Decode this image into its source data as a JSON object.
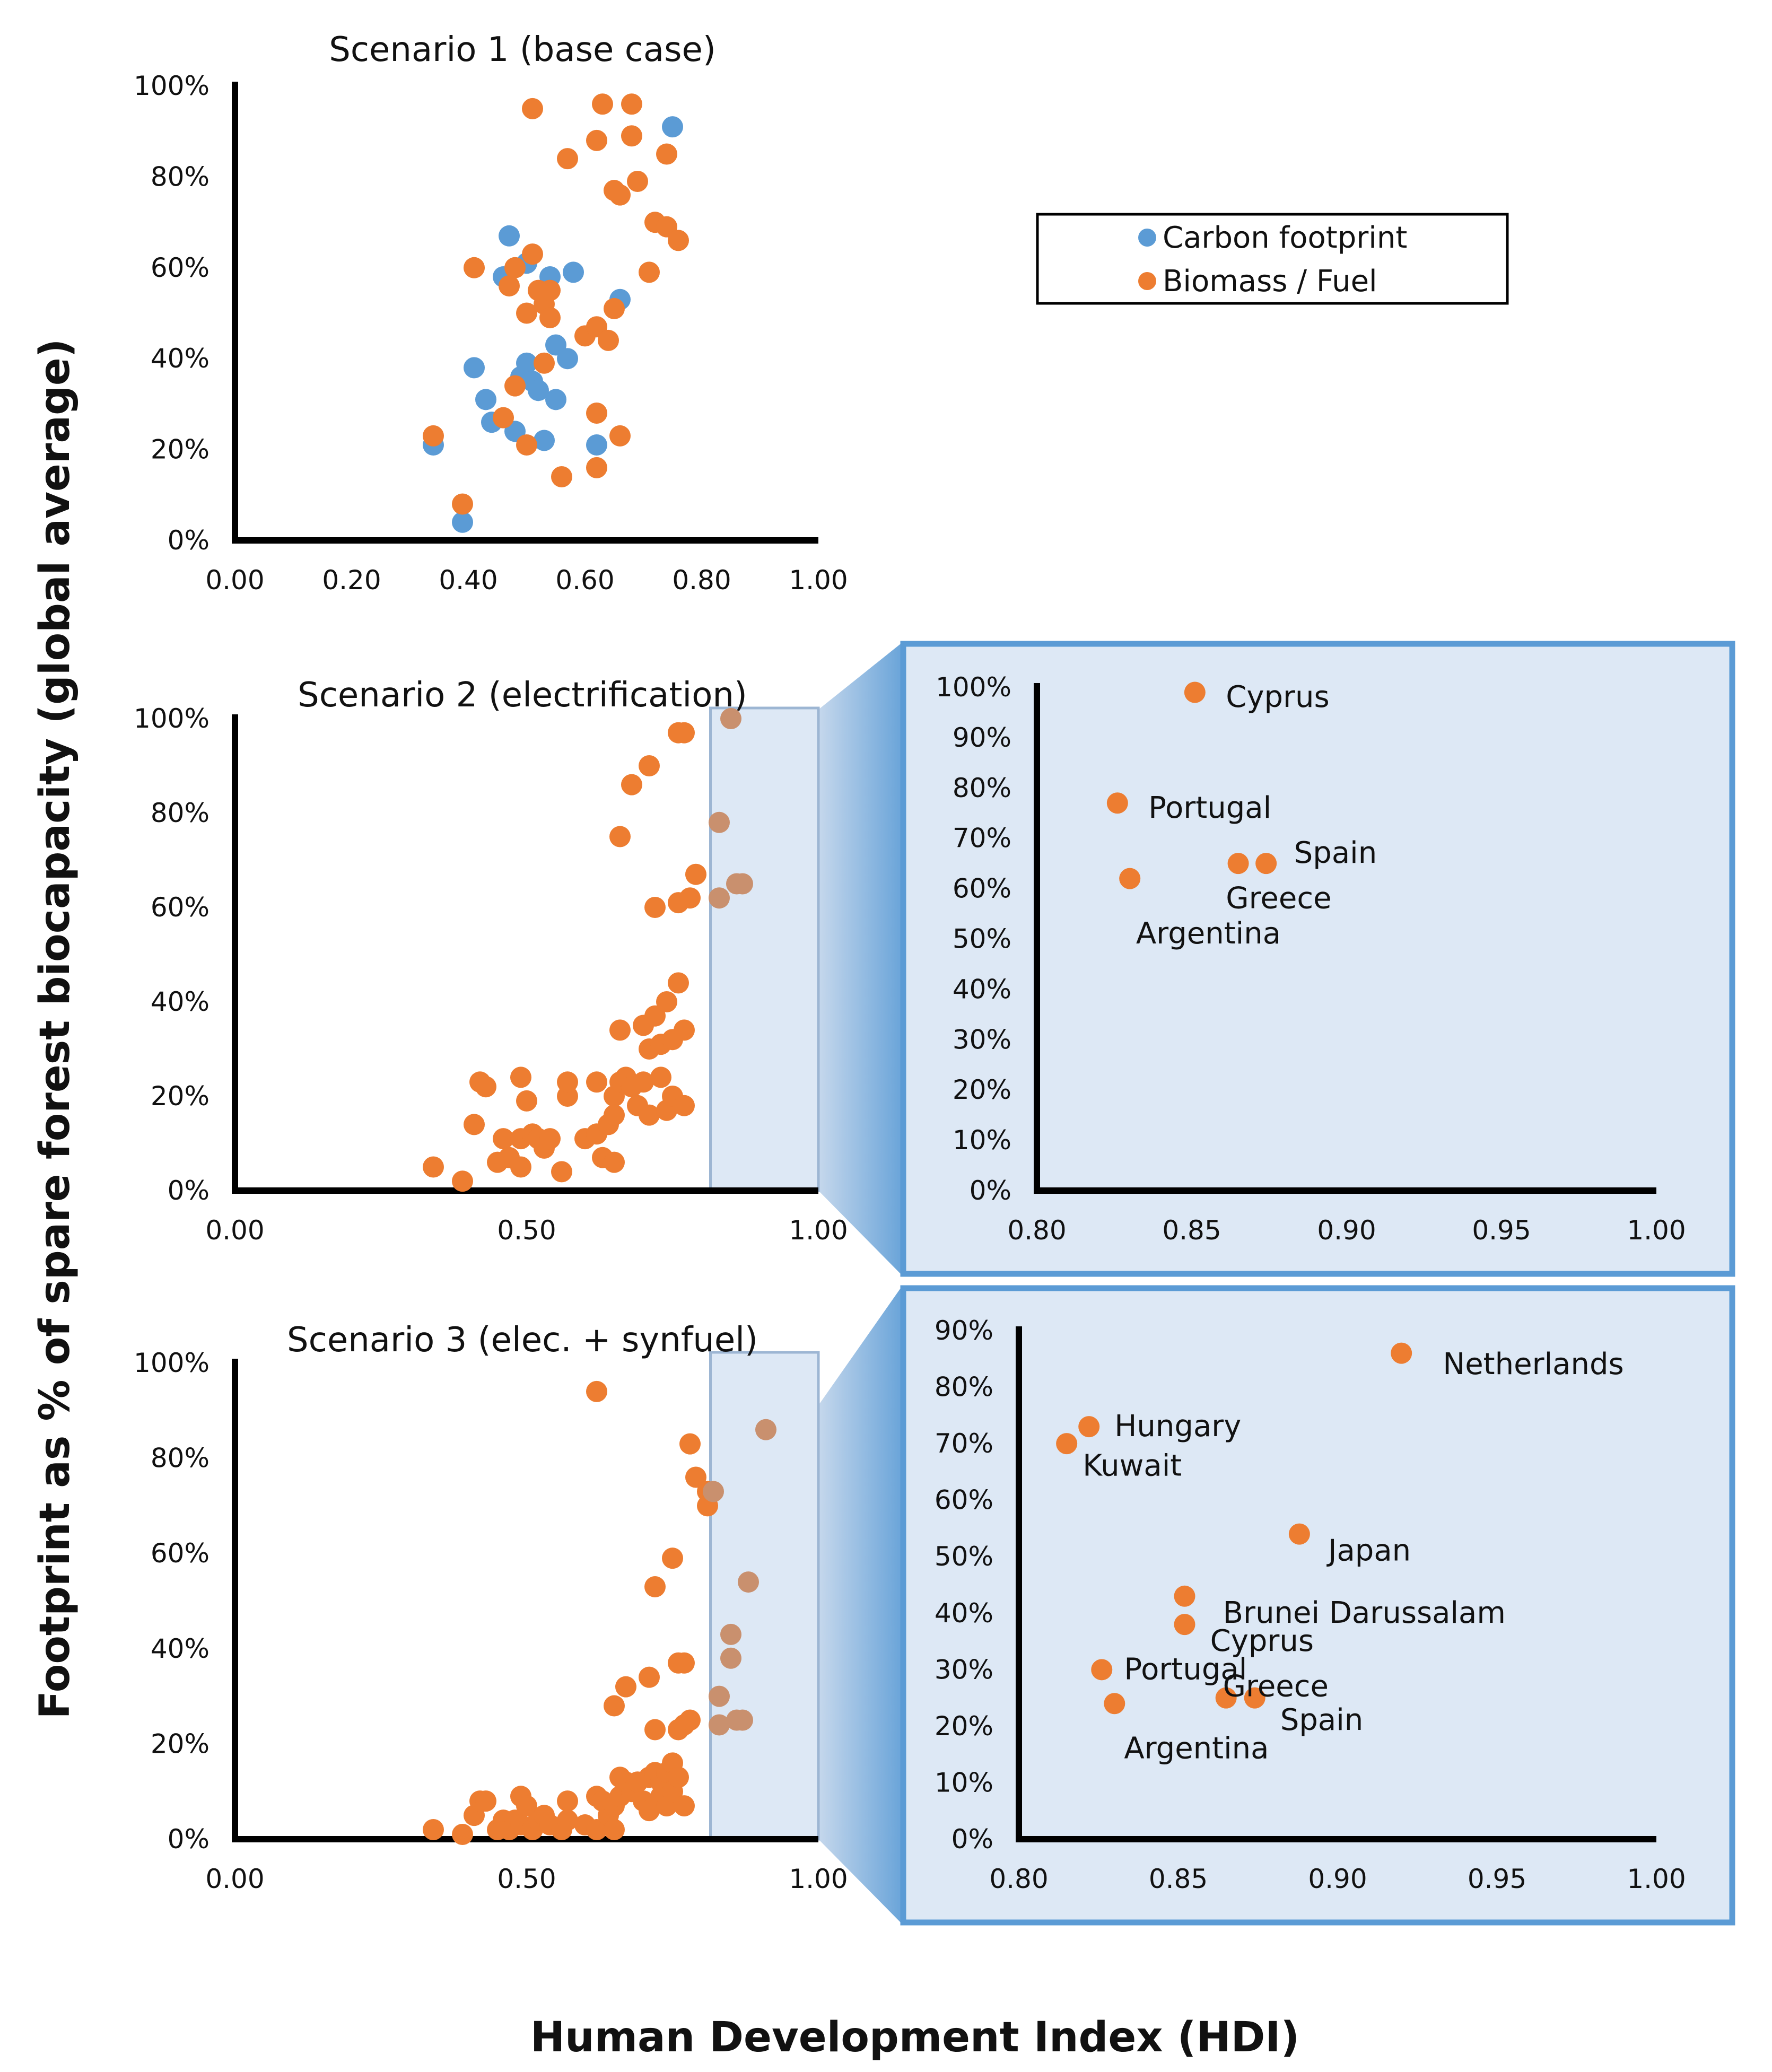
{
  "figure": {
    "ylabel": "Footprint as % of spare forest biocapacity (global average)",
    "xlabel": "Human Development Index (HDI)"
  },
  "legend": {
    "items": [
      {
        "label": "Carbon footprint",
        "color": "#5B9BD5"
      },
      {
        "label": "Biomass / Fuel",
        "color": "#ED7D31"
      }
    ]
  },
  "colors": {
    "carbon": "#5B9BD5",
    "biomass": "#ED7D31",
    "faded": "#C9906E",
    "inset_bg": "#DDE8F5",
    "inset_border": "#5B9BD5",
    "highlight_fill": "#DDE8F5",
    "highlight_border": "#9DB6D3"
  },
  "chart_data": [
    {
      "id": "s1",
      "type": "scatter",
      "title": "Scenario 1 (base case)",
      "xlim": [
        0,
        1
      ],
      "ylim": [
        0,
        100
      ],
      "xticks": [
        "0.00",
        "0.20",
        "0.40",
        "0.60",
        "0.80",
        "1.00"
      ],
      "yticks": [
        "0%",
        "20%",
        "40%",
        "60%",
        "80%",
        "100%"
      ],
      "series": [
        {
          "name": "Carbon footprint",
          "color": "carbon",
          "points": [
            [
              0.34,
              21
            ],
            [
              0.39,
              4
            ],
            [
              0.41,
              38
            ],
            [
              0.43,
              31
            ],
            [
              0.44,
              26
            ],
            [
              0.46,
              58
            ],
            [
              0.47,
              67
            ],
            [
              0.48,
              24
            ],
            [
              0.49,
              36
            ],
            [
              0.5,
              61
            ],
            [
              0.5,
              39
            ],
            [
              0.51,
              35
            ],
            [
              0.52,
              33
            ],
            [
              0.53,
              22
            ],
            [
              0.54,
              58
            ],
            [
              0.55,
              43
            ],
            [
              0.55,
              31
            ],
            [
              0.57,
              40
            ],
            [
              0.58,
              59
            ],
            [
              0.62,
              21
            ],
            [
              0.66,
              53
            ],
            [
              0.75,
              91
            ]
          ]
        },
        {
          "name": "Biomass / Fuel",
          "color": "biomass",
          "points": [
            [
              0.34,
              23
            ],
            [
              0.39,
              8
            ],
            [
              0.41,
              60
            ],
            [
              0.46,
              27
            ],
            [
              0.47,
              56
            ],
            [
              0.48,
              34
            ],
            [
              0.48,
              60
            ],
            [
              0.5,
              21
            ],
            [
              0.5,
              50
            ],
            [
              0.51,
              63
            ],
            [
              0.52,
              55
            ],
            [
              0.53,
              39
            ],
            [
              0.53,
              52
            ],
            [
              0.54,
              55
            ],
            [
              0.54,
              49
            ],
            [
              0.56,
              14
            ],
            [
              0.57,
              84
            ],
            [
              0.6,
              45
            ],
            [
              0.62,
              16
            ],
            [
              0.62,
              88
            ],
            [
              0.62,
              28
            ],
            [
              0.62,
              47
            ],
            [
              0.63,
              96
            ],
            [
              0.64,
              44
            ],
            [
              0.65,
              51
            ],
            [
              0.65,
              77
            ],
            [
              0.66,
              23
            ],
            [
              0.66,
              76
            ],
            [
              0.68,
              89
            ],
            [
              0.68,
              96
            ],
            [
              0.69,
              79
            ],
            [
              0.71,
              59
            ],
            [
              0.72,
              70
            ],
            [
              0.74,
              85
            ],
            [
              0.74,
              69
            ],
            [
              0.76,
              66
            ],
            [
              0.51,
              95
            ]
          ]
        }
      ]
    },
    {
      "id": "s2",
      "type": "scatter",
      "title": "Scenario 2 (electrification)",
      "xlim": [
        0,
        1
      ],
      "ylim": [
        0,
        100
      ],
      "xticks": [
        "0.00",
        "0.50",
        "1.00"
      ],
      "yticks": [
        "0%",
        "20%",
        "40%",
        "60%",
        "80%",
        "100%"
      ],
      "highlight_x": [
        0.815,
        1.0
      ],
      "series": [
        {
          "name": "Biomass / Fuel",
          "color": "biomass",
          "points": [
            [
              0.34,
              5
            ],
            [
              0.39,
              2
            ],
            [
              0.41,
              14
            ],
            [
              0.42,
              23
            ],
            [
              0.43,
              22
            ],
            [
              0.45,
              6
            ],
            [
              0.46,
              11
            ],
            [
              0.47,
              7
            ],
            [
              0.49,
              24
            ],
            [
              0.49,
              11
            ],
            [
              0.49,
              5
            ],
            [
              0.5,
              19
            ],
            [
              0.51,
              12
            ],
            [
              0.52,
              11
            ],
            [
              0.53,
              9
            ],
            [
              0.54,
              11
            ],
            [
              0.56,
              4
            ],
            [
              0.57,
              20
            ],
            [
              0.57,
              23
            ],
            [
              0.6,
              11
            ],
            [
              0.62,
              23
            ],
            [
              0.62,
              12
            ],
            [
              0.63,
              7
            ],
            [
              0.64,
              14
            ],
            [
              0.65,
              6
            ],
            [
              0.65,
              20
            ],
            [
              0.65,
              16
            ],
            [
              0.66,
              23
            ],
            [
              0.66,
              34
            ],
            [
              0.67,
              24
            ],
            [
              0.68,
              22
            ],
            [
              0.69,
              18
            ],
            [
              0.7,
              35
            ],
            [
              0.7,
              23
            ],
            [
              0.71,
              16
            ],
            [
              0.71,
              30
            ],
            [
              0.72,
              37
            ],
            [
              0.72,
              60
            ],
            [
              0.73,
              24
            ],
            [
              0.73,
              31
            ],
            [
              0.74,
              40
            ],
            [
              0.74,
              17
            ],
            [
              0.75,
              20
            ],
            [
              0.75,
              32
            ],
            [
              0.76,
              44
            ],
            [
              0.76,
              61
            ],
            [
              0.77,
              18
            ],
            [
              0.77,
              34
            ],
            [
              0.78,
              62
            ],
            [
              0.79,
              67
            ],
            [
              0.66,
              75
            ],
            [
              0.68,
              86
            ],
            [
              0.71,
              90
            ],
            [
              0.76,
              97
            ],
            [
              0.77,
              97
            ]
          ]
        },
        {
          "name": "Biomass / Fuel (highlighted)",
          "color": "faded",
          "points": [
            [
              0.83,
              62
            ],
            [
              0.83,
              78
            ],
            [
              0.85,
              100
            ],
            [
              0.87,
              65
            ],
            [
              0.86,
              65
            ]
          ]
        }
      ]
    },
    {
      "id": "s3",
      "type": "scatter",
      "title": "Scenario 3 (elec. + synfuel)",
      "xlim": [
        0,
        1
      ],
      "ylim": [
        0,
        100
      ],
      "xticks": [
        "0.00",
        "0.50",
        "1.00"
      ],
      "yticks": [
        "0%",
        "20%",
        "40%",
        "60%",
        "80%",
        "100%"
      ],
      "highlight_x": [
        0.815,
        1.0
      ],
      "series": [
        {
          "name": "Biomass / Fuel",
          "color": "biomass",
          "points": [
            [
              0.34,
              2
            ],
            [
              0.39,
              1
            ],
            [
              0.41,
              5
            ],
            [
              0.42,
              8
            ],
            [
              0.43,
              8
            ],
            [
              0.45,
              2
            ],
            [
              0.46,
              4
            ],
            [
              0.47,
              2
            ],
            [
              0.48,
              4
            ],
            [
              0.49,
              9
            ],
            [
              0.49,
              3
            ],
            [
              0.5,
              7
            ],
            [
              0.51,
              2
            ],
            [
              0.52,
              4
            ],
            [
              0.53,
              5
            ],
            [
              0.54,
              3
            ],
            [
              0.56,
              2
            ],
            [
              0.57,
              8
            ],
            [
              0.57,
              4
            ],
            [
              0.6,
              3
            ],
            [
              0.62,
              9
            ],
            [
              0.62,
              2
            ],
            [
              0.63,
              8
            ],
            [
              0.64,
              5
            ],
            [
              0.65,
              2
            ],
            [
              0.65,
              7
            ],
            [
              0.66,
              13
            ],
            [
              0.66,
              9
            ],
            [
              0.67,
              12
            ],
            [
              0.68,
              10
            ],
            [
              0.69,
              12
            ],
            [
              0.7,
              8
            ],
            [
              0.71,
              6
            ],
            [
              0.71,
              13
            ],
            [
              0.72,
              14
            ],
            [
              0.73,
              9
            ],
            [
              0.73,
              12
            ],
            [
              0.74,
              14
            ],
            [
              0.74,
              7
            ],
            [
              0.75,
              16
            ],
            [
              0.75,
              10
            ],
            [
              0.76,
              13
            ],
            [
              0.77,
              7
            ],
            [
              0.62,
              94
            ],
            [
              0.65,
              28
            ],
            [
              0.67,
              32
            ],
            [
              0.71,
              34
            ],
            [
              0.72,
              23
            ],
            [
              0.72,
              53
            ],
            [
              0.75,
              59
            ],
            [
              0.76,
              23
            ],
            [
              0.76,
              37
            ],
            [
              0.77,
              37
            ],
            [
              0.77,
              24
            ],
            [
              0.78,
              25
            ],
            [
              0.78,
              83
            ],
            [
              0.79,
              76
            ],
            [
              0.81,
              73
            ],
            [
              0.81,
              70
            ]
          ]
        },
        {
          "name": "Biomass / Fuel (highlighted)",
          "color": "faded",
          "points": [
            [
              0.83,
              30
            ],
            [
              0.83,
              24
            ],
            [
              0.85,
              38
            ],
            [
              0.85,
              43
            ],
            [
              0.86,
              25
            ],
            [
              0.87,
              25
            ],
            [
              0.88,
              54
            ],
            [
              0.91,
              86
            ],
            [
              0.82,
              73
            ]
          ]
        }
      ]
    },
    {
      "id": "inset2",
      "type": "scatter",
      "title": "",
      "xlim": [
        0.8,
        1.0
      ],
      "ylim": [
        0,
        100
      ],
      "xticks": [
        "0.80",
        "0.85",
        "0.90",
        "0.95",
        "1.00"
      ],
      "yticks": [
        "0%",
        "10%",
        "20%",
        "30%",
        "40%",
        "50%",
        "60%",
        "70%",
        "80%",
        "90%",
        "100%"
      ],
      "series": [
        {
          "name": "Biomass / Fuel",
          "color": "biomass",
          "points": [
            [
              0.851,
              99
            ],
            [
              0.826,
              77
            ],
            [
              0.83,
              62
            ],
            [
              0.865,
              65
            ],
            [
              0.874,
              65
            ]
          ]
        }
      ],
      "annotations": [
        {
          "text": "Cyprus",
          "x": 0.861,
          "y": 98
        },
        {
          "text": "Portugal",
          "x": 0.836,
          "y": 76
        },
        {
          "text": "Spain",
          "x": 0.883,
          "y": 67
        },
        {
          "text": "Greece",
          "x": 0.861,
          "y": 58
        },
        {
          "text": "Argentina",
          "x": 0.832,
          "y": 51
        }
      ]
    },
    {
      "id": "inset3",
      "type": "scatter",
      "title": "",
      "xlim": [
        0.8,
        1.0
      ],
      "ylim": [
        0,
        90
      ],
      "xticks": [
        "0.80",
        "0.85",
        "0.90",
        "0.95",
        "1.00"
      ],
      "yticks": [
        "0%",
        "10%",
        "20%",
        "30%",
        "40%",
        "50%",
        "60%",
        "70%",
        "80%",
        "90%"
      ],
      "series": [
        {
          "name": "Biomass / Fuel",
          "color": "biomass",
          "points": [
            [
              0.92,
              86
            ],
            [
              0.822,
              73
            ],
            [
              0.815,
              70
            ],
            [
              0.888,
              54
            ],
            [
              0.852,
              43
            ],
            [
              0.852,
              38
            ],
            [
              0.826,
              30
            ],
            [
              0.83,
              24
            ],
            [
              0.865,
              25
            ],
            [
              0.874,
              25
            ]
          ]
        }
      ],
      "annotations": [
        {
          "text": "Netherlands",
          "x": 0.933,
          "y": 84
        },
        {
          "text": "Hungary",
          "x": 0.83,
          "y": 73
        },
        {
          "text": "Kuwait",
          "x": 0.82,
          "y": 66
        },
        {
          "text": "Japan",
          "x": 0.897,
          "y": 51
        },
        {
          "text": "Brunei Darussalam",
          "x": 0.864,
          "y": 40
        },
        {
          "text": "Cyprus",
          "x": 0.86,
          "y": 35
        },
        {
          "text": "Portugal",
          "x": 0.833,
          "y": 30
        },
        {
          "text": "Greece",
          "x": 0.864,
          "y": 27
        },
        {
          "text": "Spain",
          "x": 0.882,
          "y": 21
        },
        {
          "text": "Argentina",
          "x": 0.833,
          "y": 16
        }
      ]
    }
  ]
}
